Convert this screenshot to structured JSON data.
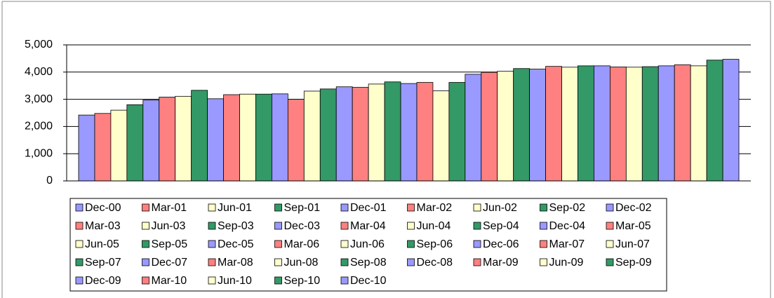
{
  "chart_data": {
    "type": "bar",
    "ylim": [
      0,
      5000
    ],
    "yticks": [
      0,
      {
        "value": 1000,
        "label": "1,000"
      },
      {
        "value": 2000,
        "label": "2,000"
      },
      {
        "value": 3000,
        "label": "3,000"
      },
      {
        "value": 4000,
        "label": "4,000"
      },
      {
        "value": 5000,
        "label": "5,000"
      }
    ],
    "grid": true,
    "legend": "bottom",
    "series": [
      {
        "name": "Dec-00",
        "color": "#9999ff",
        "values": [
          2420
        ]
      },
      {
        "name": "Mar-01",
        "color": "#ff8080",
        "values": [
          2480
        ]
      },
      {
        "name": "Jun-01",
        "color": "#ffffcc",
        "values": [
          2600
        ]
      },
      {
        "name": "Sep-01",
        "color": "#339966",
        "values": [
          2800
        ]
      },
      {
        "name": "Dec-01",
        "color": "#9999ff",
        "values": [
          2970
        ]
      },
      {
        "name": "Mar-02",
        "color": "#ff8080",
        "values": [
          3080
        ]
      },
      {
        "name": "Jun-02",
        "color": "#ffffcc",
        "values": [
          3110
        ]
      },
      {
        "name": "Sep-02",
        "color": "#339966",
        "values": [
          3330
        ]
      },
      {
        "name": "Dec-02",
        "color": "#9999ff",
        "values": [
          3020
        ]
      },
      {
        "name": "Mar-03",
        "color": "#ff8080",
        "values": [
          3170
        ]
      },
      {
        "name": "Jun-03",
        "color": "#ffffcc",
        "values": [
          3190
        ]
      },
      {
        "name": "Sep-03",
        "color": "#339966",
        "values": [
          3190
        ]
      },
      {
        "name": "Dec-03",
        "color": "#9999ff",
        "values": [
          3200
        ]
      },
      {
        "name": "Mar-04",
        "color": "#ff8080",
        "values": [
          3000
        ]
      },
      {
        "name": "Jun-04",
        "color": "#ffffcc",
        "values": [
          3300
        ]
      },
      {
        "name": "Sep-04",
        "color": "#339966",
        "values": [
          3380
        ]
      },
      {
        "name": "Dec-04",
        "color": "#9999ff",
        "values": [
          3460
        ]
      },
      {
        "name": "Mar-05",
        "color": "#ff8080",
        "values": [
          3440
        ]
      },
      {
        "name": "Jun-05",
        "color": "#ffffcc",
        "values": [
          3560
        ]
      },
      {
        "name": "Sep-05",
        "color": "#339966",
        "values": [
          3640
        ]
      },
      {
        "name": "Dec-05",
        "color": "#9999ff",
        "values": [
          3580
        ]
      },
      {
        "name": "Mar-06",
        "color": "#ff8080",
        "values": [
          3620
        ]
      },
      {
        "name": "Jun-06",
        "color": "#ffffcc",
        "values": [
          3310
        ]
      },
      {
        "name": "Sep-06",
        "color": "#339966",
        "values": [
          3620
        ]
      },
      {
        "name": "Dec-06",
        "color": "#9999ff",
        "values": [
          3920
        ]
      },
      {
        "name": "Mar-07",
        "color": "#ff8080",
        "values": [
          3990
        ]
      },
      {
        "name": "Jun-07",
        "color": "#ffffcc",
        "values": [
          4030
        ]
      },
      {
        "name": "Sep-07",
        "color": "#339966",
        "values": [
          4130
        ]
      },
      {
        "name": "Dec-07",
        "color": "#9999ff",
        "values": [
          4110
        ]
      },
      {
        "name": "Mar-08",
        "color": "#ff8080",
        "values": [
          4210
        ]
      },
      {
        "name": "Jun-08",
        "color": "#ffffcc",
        "values": [
          4180
        ]
      },
      {
        "name": "Sep-08",
        "color": "#339966",
        "values": [
          4230
        ]
      },
      {
        "name": "Dec-08",
        "color": "#9999ff",
        "values": [
          4230
        ]
      },
      {
        "name": "Mar-09",
        "color": "#ff8080",
        "values": [
          4190
        ]
      },
      {
        "name": "Jun-09",
        "color": "#ffffcc",
        "values": [
          4180
        ]
      },
      {
        "name": "Sep-09",
        "color": "#339966",
        "values": [
          4200
        ]
      },
      {
        "name": "Dec-09",
        "color": "#9999ff",
        "values": [
          4230
        ]
      },
      {
        "name": "Mar-10",
        "color": "#ff8080",
        "values": [
          4270
        ]
      },
      {
        "name": "Jun-10",
        "color": "#ffffcc",
        "values": [
          4230
        ]
      },
      {
        "name": "Sep-10",
        "color": "#339966",
        "values": [
          4440
        ]
      },
      {
        "name": "Dec-10",
        "color": "#9999ff",
        "values": [
          4470
        ]
      }
    ]
  }
}
